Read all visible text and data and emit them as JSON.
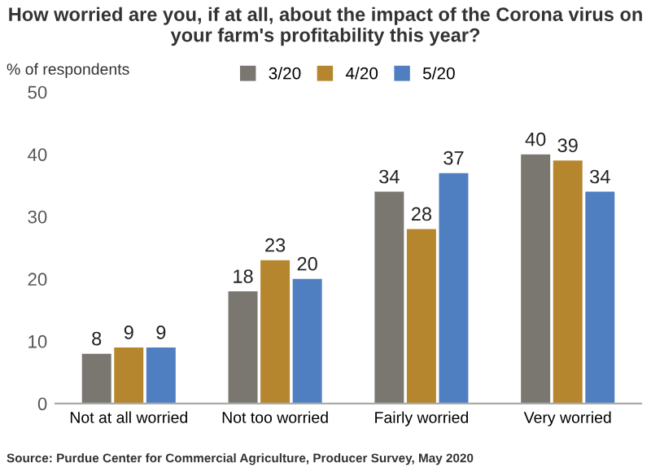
{
  "chart_data": {
    "type": "bar",
    "title": "How worried are you, if at all, about the impact of the Corona virus on your farm's profitability this year?",
    "ylabel": "% of respondents",
    "categories": [
      "Not at all worried",
      "Not too worried",
      "Fairly worried",
      "Very worried"
    ],
    "series": [
      {
        "name": "3/20",
        "color": "#7a7670",
        "values": [
          8,
          18,
          34,
          40
        ]
      },
      {
        "name": "4/20",
        "color": "#b5862d",
        "values": [
          9,
          23,
          28,
          39
        ]
      },
      {
        "name": "5/20",
        "color": "#4f7fc0",
        "values": [
          9,
          20,
          37,
          34
        ]
      }
    ],
    "ylim": [
      0,
      50
    ],
    "yticks": [
      0,
      10,
      20,
      30,
      40,
      50
    ],
    "grid": false,
    "legend": "top",
    "data_labels": true,
    "annotations": [
      "Source: Purdue Center for Commercial Agriculture, Producer Survey, May 2020"
    ]
  }
}
